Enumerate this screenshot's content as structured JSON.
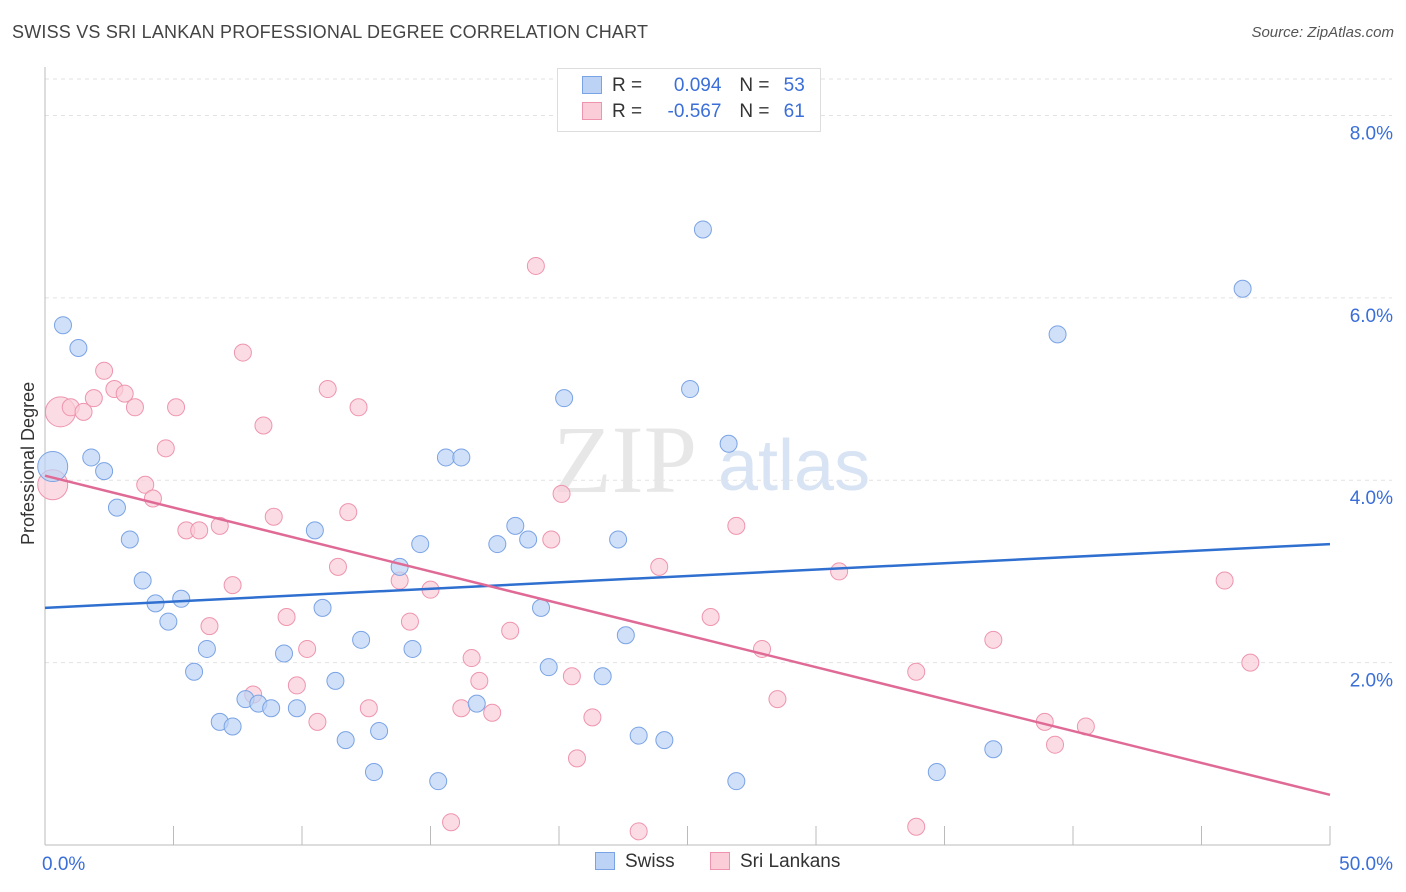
{
  "header": {
    "title": "SWISS VS SRI LANKAN PROFESSIONAL DEGREE CORRELATION CHART",
    "source": "Source: ZipAtlas.com"
  },
  "legend_top": {
    "rows": [
      {
        "r_label": "R =",
        "r_value": "0.094",
        "n_label": "N =",
        "n_value": "53"
      },
      {
        "r_label": "R =",
        "r_value": "-0.567",
        "n_label": "N =",
        "n_value": "61"
      }
    ]
  },
  "bottom_legend": [
    "Swiss",
    "Sri Lankans"
  ],
  "watermark": {
    "zip": "ZIP",
    "atlas": "atlas"
  },
  "colors": {
    "swiss_fill": "#bcd3f5",
    "swiss_stroke": "#7aa3e5",
    "swiss_line": "#2f6fd0",
    "srilankan_fill": "#fbcdd9",
    "srilankan_stroke": "#ee94ae",
    "srilankan_line": "#e06a96",
    "tick_label": "#3a6ed8",
    "grid": "#e2e2e2"
  },
  "chart_data": {
    "type": "scatter",
    "title": "SWISS VS SRI LANKAN PROFESSIONAL DEGREE CORRELATION CHART",
    "xlabel": "",
    "ylabel": "Professional Degree",
    "xlim": [
      0,
      50
    ],
    "ylim": [
      0,
      8.4
    ],
    "x_tick_labels": [
      "0.0%",
      "50.0%"
    ],
    "y_ticks": [
      2,
      4,
      6,
      8
    ],
    "y_tick_labels": [
      "2.0%",
      "4.0%",
      "6.0%",
      "8.0%"
    ],
    "grid": "horizontal dashed",
    "series": [
      {
        "name": "Swiss",
        "r": 0.094,
        "n": 53,
        "trend": {
          "x": [
            0,
            50
          ],
          "y": [
            2.6,
            3.3
          ]
        },
        "points": [
          {
            "x": 0.3,
            "y": 4.15,
            "big": true
          },
          {
            "x": 0.7,
            "y": 5.7
          },
          {
            "x": 1.3,
            "y": 5.45
          },
          {
            "x": 1.8,
            "y": 4.25
          },
          {
            "x": 2.3,
            "y": 4.1
          },
          {
            "x": 2.8,
            "y": 3.7
          },
          {
            "x": 3.3,
            "y": 3.35
          },
          {
            "x": 3.8,
            "y": 2.9
          },
          {
            "x": 4.3,
            "y": 2.65
          },
          {
            "x": 4.8,
            "y": 2.45
          },
          {
            "x": 5.3,
            "y": 2.7
          },
          {
            "x": 5.8,
            "y": 1.9
          },
          {
            "x": 6.3,
            "y": 2.15
          },
          {
            "x": 6.8,
            "y": 1.35
          },
          {
            "x": 7.3,
            "y": 1.3
          },
          {
            "x": 7.8,
            "y": 1.6
          },
          {
            "x": 8.3,
            "y": 1.55
          },
          {
            "x": 8.8,
            "y": 1.5
          },
          {
            "x": 9.3,
            "y": 2.1
          },
          {
            "x": 9.8,
            "y": 1.5
          },
          {
            "x": 10.5,
            "y": 3.45
          },
          {
            "x": 10.8,
            "y": 2.6
          },
          {
            "x": 11.3,
            "y": 1.8
          },
          {
            "x": 11.7,
            "y": 1.15
          },
          {
            "x": 12.3,
            "y": 2.25
          },
          {
            "x": 12.8,
            "y": 0.8
          },
          {
            "x": 13.0,
            "y": 1.25
          },
          {
            "x": 13.8,
            "y": 3.05
          },
          {
            "x": 14.3,
            "y": 2.15
          },
          {
            "x": 14.6,
            "y": 3.3
          },
          {
            "x": 15.3,
            "y": 0.7
          },
          {
            "x": 15.6,
            "y": 4.25
          },
          {
            "x": 16.2,
            "y": 4.25
          },
          {
            "x": 16.8,
            "y": 1.55
          },
          {
            "x": 17.6,
            "y": 3.3
          },
          {
            "x": 18.3,
            "y": 3.5
          },
          {
            "x": 18.8,
            "y": 3.35
          },
          {
            "x": 19.3,
            "y": 2.6
          },
          {
            "x": 19.6,
            "y": 1.95
          },
          {
            "x": 20.2,
            "y": 4.9
          },
          {
            "x": 21.7,
            "y": 1.85
          },
          {
            "x": 22.3,
            "y": 3.35
          },
          {
            "x": 22.6,
            "y": 2.3
          },
          {
            "x": 23.1,
            "y": 1.2
          },
          {
            "x": 24.1,
            "y": 1.15
          },
          {
            "x": 25.1,
            "y": 5.0
          },
          {
            "x": 25.6,
            "y": 6.75
          },
          {
            "x": 26.6,
            "y": 4.4
          },
          {
            "x": 26.9,
            "y": 0.7
          },
          {
            "x": 34.7,
            "y": 0.8
          },
          {
            "x": 36.9,
            "y": 1.05
          },
          {
            "x": 39.4,
            "y": 5.6
          },
          {
            "x": 46.6,
            "y": 6.1
          }
        ]
      },
      {
        "name": "Sri Lankans",
        "r": -0.567,
        "n": 61,
        "trend": {
          "x": [
            0,
            50
          ],
          "y": [
            4.05,
            0.55
          ]
        },
        "points": [
          {
            "x": 0.3,
            "y": 3.95,
            "big": true
          },
          {
            "x": 0.6,
            "y": 4.75,
            "big": true
          },
          {
            "x": 1.0,
            "y": 4.8
          },
          {
            "x": 1.5,
            "y": 4.75
          },
          {
            "x": 1.9,
            "y": 4.9
          },
          {
            "x": 2.3,
            "y": 5.2
          },
          {
            "x": 2.7,
            "y": 5.0
          },
          {
            "x": 3.1,
            "y": 4.95
          },
          {
            "x": 3.5,
            "y": 4.8
          },
          {
            "x": 3.9,
            "y": 3.95
          },
          {
            "x": 4.2,
            "y": 3.8
          },
          {
            "x": 4.7,
            "y": 4.35
          },
          {
            "x": 5.1,
            "y": 4.8
          },
          {
            "x": 5.5,
            "y": 3.45
          },
          {
            "x": 6.0,
            "y": 3.45
          },
          {
            "x": 6.4,
            "y": 2.4
          },
          {
            "x": 6.8,
            "y": 3.5
          },
          {
            "x": 7.3,
            "y": 2.85
          },
          {
            "x": 7.7,
            "y": 5.4
          },
          {
            "x": 8.1,
            "y": 1.65
          },
          {
            "x": 8.5,
            "y": 4.6
          },
          {
            "x": 8.9,
            "y": 3.6
          },
          {
            "x": 9.4,
            "y": 2.5
          },
          {
            "x": 9.8,
            "y": 1.75
          },
          {
            "x": 10.2,
            "y": 2.15
          },
          {
            "x": 10.6,
            "y": 1.35
          },
          {
            "x": 11.0,
            "y": 5.0
          },
          {
            "x": 11.4,
            "y": 3.05
          },
          {
            "x": 11.8,
            "y": 3.65
          },
          {
            "x": 12.2,
            "y": 4.8
          },
          {
            "x": 12.6,
            "y": 1.5
          },
          {
            "x": 13.8,
            "y": 2.9
          },
          {
            "x": 14.2,
            "y": 2.45
          },
          {
            "x": 15.0,
            "y": 2.8
          },
          {
            "x": 15.8,
            "y": 0.25
          },
          {
            "x": 16.2,
            "y": 1.5
          },
          {
            "x": 16.6,
            "y": 2.05
          },
          {
            "x": 16.9,
            "y": 1.8
          },
          {
            "x": 17.4,
            "y": 1.45
          },
          {
            "x": 18.1,
            "y": 2.35
          },
          {
            "x": 19.1,
            "y": 6.35
          },
          {
            "x": 19.7,
            "y": 3.35
          },
          {
            "x": 20.1,
            "y": 3.85
          },
          {
            "x": 20.5,
            "y": 1.85
          },
          {
            "x": 20.7,
            "y": 0.95
          },
          {
            "x": 21.3,
            "y": 1.4
          },
          {
            "x": 23.1,
            "y": 0.15
          },
          {
            "x": 23.9,
            "y": 3.05
          },
          {
            "x": 25.9,
            "y": 2.5
          },
          {
            "x": 26.9,
            "y": 3.5
          },
          {
            "x": 27.9,
            "y": 2.15
          },
          {
            "x": 28.5,
            "y": 1.6
          },
          {
            "x": 30.9,
            "y": 3.0
          },
          {
            "x": 33.9,
            "y": 1.9
          },
          {
            "x": 33.9,
            "y": 0.2
          },
          {
            "x": 36.9,
            "y": 2.25
          },
          {
            "x": 38.9,
            "y": 1.35
          },
          {
            "x": 39.3,
            "y": 1.1
          },
          {
            "x": 40.5,
            "y": 1.3
          },
          {
            "x": 45.9,
            "y": 2.9
          },
          {
            "x": 46.9,
            "y": 2.0
          }
        ]
      }
    ]
  }
}
